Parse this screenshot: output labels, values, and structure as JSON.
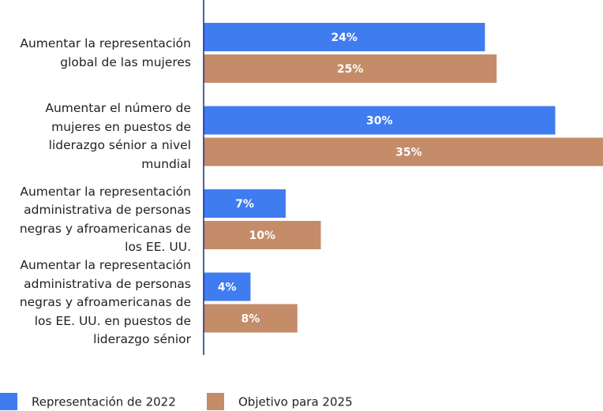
{
  "chart_data": {
    "type": "bar",
    "orientation": "horizontal",
    "categories": [
      "Aumentar la representación global de las mujeres",
      "Aumentar el número de mujeres en puestos de liderazgo sénior a nivel mundial",
      "Aumentar la representación administrativa de personas negras y afroamericanas de los EE. UU.",
      "Aumentar la representación administrativa de personas negras y afroamericanas de los EE. UU. en puestos de liderazgo sénior"
    ],
    "series": [
      {
        "name": "Representación de 2022",
        "color": "#3f7cf0",
        "values": [
          24,
          30,
          7,
          4
        ],
        "value_labels": [
          "24%",
          "30%",
          "7%",
          "4%"
        ]
      },
      {
        "name": "Objetivo para 2025",
        "color": "#c48c68",
        "values": [
          25,
          35,
          10,
          8
        ],
        "value_labels": [
          "25%",
          "35%",
          "10%",
          "8%"
        ]
      }
    ],
    "legend": "bottom"
  }
}
